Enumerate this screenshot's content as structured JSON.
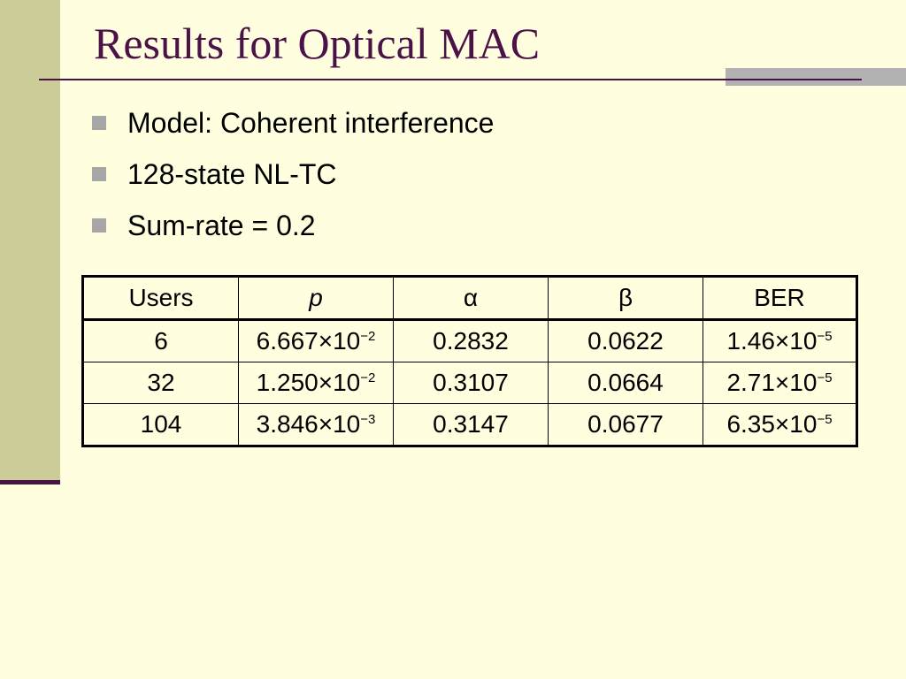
{
  "slide": {
    "title": "Results for Optical MAC",
    "bullets": [
      "Model: Coherent interference",
      "128-state NL-TC",
      "Sum-rate = 0.2"
    ]
  },
  "table": {
    "headers": [
      "Users",
      "p",
      "α",
      "β",
      "BER"
    ],
    "rows": [
      {
        "users": "6",
        "p_mantissa": "6.667×10",
        "p_exp": "−2",
        "alpha": "0.2832",
        "beta": "0.0622",
        "ber_mantissa": "1.46×10",
        "ber_exp": "−5"
      },
      {
        "users": "32",
        "p_mantissa": "1.250×10",
        "p_exp": "−2",
        "alpha": "0.3107",
        "beta": "0.0664",
        "ber_mantissa": "2.71×10",
        "ber_exp": "−5"
      },
      {
        "users": "104",
        "p_mantissa": "3.846×10",
        "p_exp": "−3",
        "alpha": "0.3147",
        "beta": "0.0677",
        "ber_mantissa": "6.35×10",
        "ber_exp": "−5"
      }
    ]
  },
  "colors": {
    "background": "#FFFFE0",
    "sidebar": "#CCCC99",
    "title_text": "#4B1248",
    "accent_bar": "#B2B2B2",
    "bullet_square": "#A6A6A6"
  }
}
